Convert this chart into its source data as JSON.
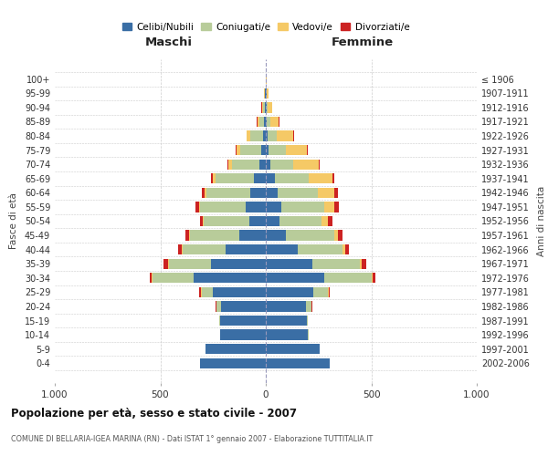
{
  "age_groups": [
    "100+",
    "95-99",
    "90-94",
    "85-89",
    "80-84",
    "75-79",
    "70-74",
    "65-69",
    "60-64",
    "55-59",
    "50-54",
    "45-49",
    "40-44",
    "35-39",
    "30-34",
    "25-29",
    "20-24",
    "15-19",
    "10-14",
    "5-9",
    "0-4"
  ],
  "birth_years": [
    "≤ 1906",
    "1907-1911",
    "1912-1916",
    "1917-1921",
    "1922-1926",
    "1927-1931",
    "1932-1936",
    "1937-1941",
    "1942-1946",
    "1947-1951",
    "1952-1956",
    "1957-1961",
    "1962-1966",
    "1967-1971",
    "1972-1976",
    "1977-1981",
    "1982-1986",
    "1987-1991",
    "1992-1996",
    "1997-2001",
    "2002-2006"
  ],
  "males_celibi": [
    2,
    3,
    5,
    8,
    12,
    20,
    30,
    55,
    75,
    95,
    80,
    125,
    190,
    260,
    340,
    250,
    210,
    215,
    215,
    285,
    310
  ],
  "males_coniugati": [
    0,
    2,
    8,
    22,
    60,
    100,
    130,
    185,
    205,
    215,
    215,
    235,
    205,
    200,
    195,
    55,
    22,
    6,
    2,
    0,
    0
  ],
  "males_vedovi": [
    0,
    2,
    5,
    10,
    18,
    18,
    18,
    10,
    8,
    8,
    5,
    5,
    5,
    5,
    5,
    4,
    3,
    0,
    0,
    0,
    0
  ],
  "males_divorziati": [
    0,
    0,
    2,
    3,
    3,
    3,
    5,
    10,
    14,
    14,
    10,
    14,
    15,
    18,
    10,
    5,
    3,
    0,
    0,
    0,
    0
  ],
  "females_nubili": [
    2,
    4,
    5,
    6,
    10,
    15,
    20,
    45,
    55,
    75,
    65,
    95,
    150,
    220,
    275,
    225,
    190,
    195,
    200,
    255,
    305
  ],
  "females_coniugate": [
    0,
    2,
    5,
    15,
    40,
    80,
    110,
    160,
    190,
    200,
    200,
    230,
    215,
    225,
    225,
    70,
    25,
    5,
    2,
    0,
    0
  ],
  "females_vedove": [
    2,
    5,
    20,
    40,
    80,
    100,
    120,
    110,
    80,
    50,
    28,
    18,
    10,
    8,
    5,
    5,
    3,
    0,
    0,
    0,
    0
  ],
  "females_divorziate": [
    0,
    0,
    2,
    3,
    3,
    5,
    5,
    10,
    15,
    20,
    24,
    20,
    20,
    24,
    14,
    5,
    3,
    0,
    0,
    0,
    0
  ],
  "color_celibi": "#3a6ea5",
  "color_coniugati": "#b8cc9a",
  "color_vedovi": "#f5c966",
  "color_divorziati": "#cc2222",
  "xlim": 1000,
  "title": "Popolazione per età, sesso e stato civile - 2007",
  "subtitle": "COMUNE DI BELLARIA-IGEA MARINA (RN) - Dati ISTAT 1° gennaio 2007 - Elaborazione TUTTITALIA.IT",
  "label_maschi": "Maschi",
  "label_femmine": "Femmine",
  "ylabel_left": "Fasce di età",
  "ylabel_right": "Anni di nascita",
  "legend_labels": [
    "Celibi/Nubili",
    "Coniugati/e",
    "Vedovi/e",
    "Divorziati/e"
  ],
  "xtick_vals": [
    -1000,
    -500,
    0,
    500,
    1000
  ],
  "xtick_labels": [
    "1.000",
    "500",
    "0",
    "500",
    "1.000"
  ]
}
